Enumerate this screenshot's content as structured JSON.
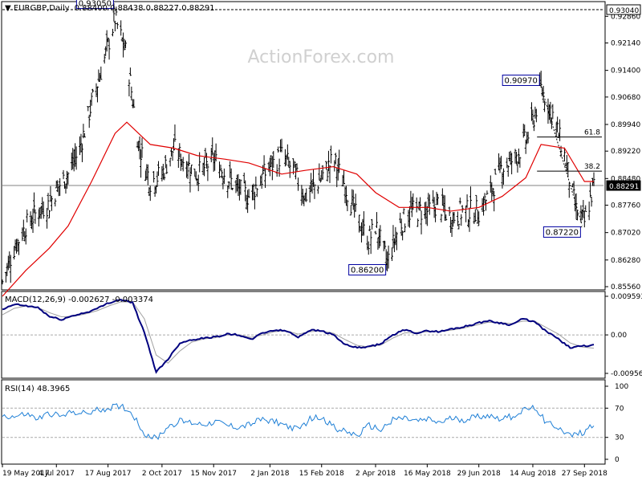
{
  "header": {
    "symbol": "EURGBP,Daily",
    "ohlc": "0.88400 0.88438 0.88227 0.88291"
  },
  "watermark": "ActionForex.com",
  "colors": {
    "price": "#000000",
    "ma": "#e00000",
    "macd": "#00007f",
    "signal": "#a0a0a0",
    "rsi": "#1e7fd6",
    "axis_text": "#000000",
    "watermark": "#d0d0d0",
    "hline": "#808080",
    "label_border": "#0000a0"
  },
  "chart_data": [
    {
      "type": "ohlc",
      "panel": "price",
      "title": "EURGBP,Daily",
      "y_range": [
        0.8556,
        0.9304
      ],
      "y_ticks": [
        "0.92860",
        "0.92140",
        "0.91400",
        "0.90680",
        "0.89940",
        "0.89220",
        "0.88480",
        "0.87760",
        "0.87020",
        "0.86280",
        "0.85560"
      ],
      "current_price_label": "0.88291",
      "current_price": 0.88291,
      "top_line_label": "0.93040",
      "top_line": 0.9304,
      "annotations": [
        {
          "text": "0.93050",
          "value": 0.9305,
          "date": "2017-08-23"
        },
        {
          "text": "0.86200",
          "value": 0.862,
          "date": "2018-04-12"
        },
        {
          "text": "0.90970",
          "value": 0.9097,
          "date": "2018-08-21"
        },
        {
          "text": "0.87220",
          "value": 0.8722,
          "date": "2018-09-25"
        }
      ],
      "fib_levels": [
        {
          "label": "61.8",
          "value": 0.896
        },
        {
          "label": "38.2",
          "value": 0.8868
        }
      ],
      "close_series": {
        "dates": [
          "2017-05-19",
          "2017-05-29",
          "2017-06-08",
          "2017-06-18",
          "2017-06-28",
          "2017-07-04",
          "2017-07-14",
          "2017-07-24",
          "2017-08-03",
          "2017-08-13",
          "2017-08-23",
          "2017-09-02",
          "2017-09-12",
          "2017-09-22",
          "2017-10-02",
          "2017-10-12",
          "2017-10-22",
          "2017-11-01",
          "2017-11-15",
          "2017-11-25",
          "2017-12-05",
          "2017-12-15",
          "2018-01-02",
          "2018-01-12",
          "2018-01-22",
          "2018-02-01",
          "2018-02-15",
          "2018-02-25",
          "2018-03-07",
          "2018-03-17",
          "2018-03-27",
          "2018-04-02",
          "2018-04-12",
          "2018-04-22",
          "2018-05-02",
          "2018-05-16",
          "2018-05-26",
          "2018-06-05",
          "2018-06-15",
          "2018-06-29",
          "2018-07-09",
          "2018-07-19",
          "2018-07-29",
          "2018-08-08",
          "2018-08-14",
          "2018-08-21",
          "2018-08-31",
          "2018-09-10",
          "2018-09-20",
          "2018-09-27",
          "2018-10-05"
        ],
        "values": [
          0.857,
          0.866,
          0.872,
          0.876,
          0.878,
          0.882,
          0.886,
          0.893,
          0.905,
          0.916,
          0.928,
          0.918,
          0.894,
          0.884,
          0.886,
          0.893,
          0.889,
          0.886,
          0.89,
          0.886,
          0.882,
          0.88,
          0.888,
          0.891,
          0.887,
          0.88,
          0.885,
          0.89,
          0.883,
          0.874,
          0.868,
          0.872,
          0.862,
          0.872,
          0.876,
          0.876,
          0.878,
          0.874,
          0.876,
          0.876,
          0.881,
          0.888,
          0.89,
          0.895,
          0.9,
          0.909,
          0.902,
          0.891,
          0.876,
          0.873,
          0.883
        ]
      },
      "ma_series": {
        "dates": [
          "2017-05-19",
          "2017-06-08",
          "2017-06-28",
          "2017-07-14",
          "2017-08-03",
          "2017-08-23",
          "2017-09-02",
          "2017-09-22",
          "2017-10-12",
          "2017-11-01",
          "2017-11-25",
          "2017-12-15",
          "2018-01-12",
          "2018-02-01",
          "2018-02-25",
          "2018-03-17",
          "2018-04-02",
          "2018-04-22",
          "2018-05-16",
          "2018-06-05",
          "2018-06-29",
          "2018-07-19",
          "2018-08-08",
          "2018-08-21",
          "2018-09-10",
          "2018-09-27",
          "2018-10-05"
        ],
        "values": [
          0.853,
          0.86,
          0.866,
          0.872,
          0.884,
          0.897,
          0.9,
          0.894,
          0.893,
          0.891,
          0.89,
          0.889,
          0.886,
          0.887,
          0.888,
          0.886,
          0.881,
          0.877,
          0.877,
          0.876,
          0.877,
          0.88,
          0.885,
          0.894,
          0.893,
          0.884,
          0.884
        ]
      }
    },
    {
      "type": "line",
      "panel": "macd",
      "title": "MACD(12,26,9) -0.002627 -0.003374",
      "y_range": [
        -0.00956,
        0.00959
      ],
      "y_ticks": [
        "0.009593",
        "0.00",
        "-0.009562"
      ],
      "series": [
        {
          "values": [
            0.0062,
            0.0076,
            0.0072,
            0.0068,
            0.0045,
            0.0038,
            0.0048,
            0.0055,
            0.0065,
            0.008,
            0.0088,
            0.008,
            0.0005,
            -0.0092,
            -0.006,
            -0.002,
            -0.0012,
            -0.0008,
            -0.0005,
            0.0002,
            0.0,
            -0.0012,
            0.0005,
            0.0012,
            0.001,
            -0.0005,
            0.0012,
            0.001,
            0.0,
            -0.0025,
            -0.0032,
            -0.003,
            -0.0022,
            0.0,
            0.0012,
            0.0005,
            0.001,
            0.0008,
            0.0015,
            0.002,
            0.0028,
            0.0035,
            0.003,
            0.0025,
            0.004,
            0.0032,
            0.0008,
            -0.001,
            -0.0032,
            -0.0028,
            -0.0026
          ]
        },
        {
          "values": [
            0.005,
            0.0066,
            0.0072,
            0.0068,
            0.0055,
            0.0045,
            0.0046,
            0.0052,
            0.006,
            0.0072,
            0.0082,
            0.0082,
            0.004,
            -0.005,
            -0.007,
            -0.004,
            -0.0018,
            -0.001,
            -0.0007,
            0.0,
            0.0,
            -0.0006,
            0.0,
            0.0008,
            0.001,
            0.0002,
            0.0008,
            0.001,
            0.0004,
            -0.0012,
            -0.0026,
            -0.003,
            -0.0025,
            -0.0008,
            0.0005,
            0.0006,
            0.0008,
            0.0008,
            0.0012,
            0.0017,
            0.0024,
            0.0031,
            0.0031,
            0.0028,
            0.0034,
            0.0034,
            0.0018,
            0.0002,
            -0.002,
            -0.003,
            -0.0033
          ]
        }
      ]
    },
    {
      "type": "line",
      "panel": "rsi",
      "title": "RSI(14) 48.3965",
      "y_range": [
        0,
        100
      ],
      "y_ticks": [
        "100",
        "70",
        "30",
        "0"
      ],
      "levels": [
        70,
        30
      ],
      "series": [
        {
          "values": [
            60,
            58,
            62,
            55,
            63,
            58,
            66,
            62,
            67,
            70,
            74,
            62,
            35,
            28,
            45,
            52,
            50,
            48,
            52,
            46,
            44,
            48,
            55,
            52,
            46,
            40,
            55,
            58,
            44,
            38,
            32,
            46,
            40,
            55,
            56,
            52,
            54,
            50,
            56,
            54,
            58,
            60,
            56,
            58,
            66,
            72,
            50,
            44,
            32,
            36,
            48
          ]
        }
      ]
    }
  ],
  "x_axis": {
    "tick_labels": [
      "19 May 2017",
      "4 Jul 2017",
      "17 Aug 2017",
      "2 Oct 2017",
      "15 Nov 2017",
      "2 Jan 2018",
      "15 Feb 2018",
      "2 Apr 2018",
      "16 May 2018",
      "29 Jun 2018",
      "14 Aug 2018",
      "27 Sep 2018"
    ]
  }
}
